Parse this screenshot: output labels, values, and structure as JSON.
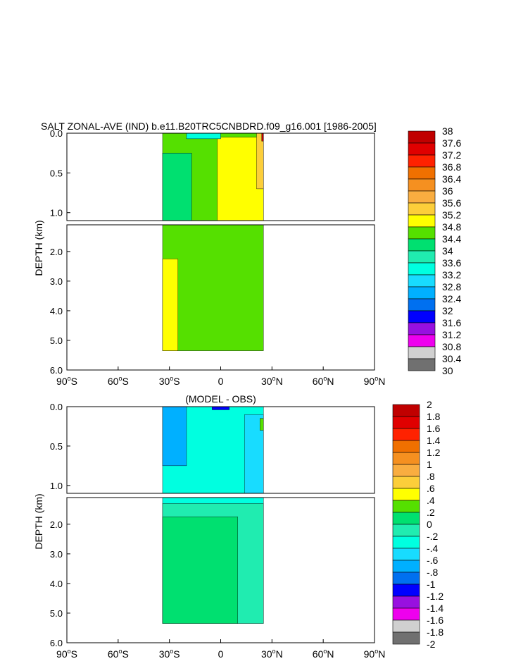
{
  "chart_data": [
    {
      "type": "heatmap",
      "title": "SALT ZONAL-AVE (IND) b.e11.B20TRC5CNBDRD.f09_g16.001 [1986-2005]",
      "ylabel": "DEPTH (km)",
      "xlabel": "",
      "xlim": [
        -90,
        90
      ],
      "x_tick_values": [
        -90,
        -60,
        -30,
        0,
        30,
        60,
        90
      ],
      "x_tick_labels": [
        {
          "num": "90",
          "hemi": "S"
        },
        {
          "num": "60",
          "hemi": "S"
        },
        {
          "num": "30",
          "hemi": "S"
        },
        {
          "num": "0",
          "hemi": ""
        },
        {
          "num": "30",
          "hemi": "N"
        },
        {
          "num": "60",
          "hemi": "N"
        },
        {
          "num": "90",
          "hemi": "N"
        }
      ],
      "upper_ylim": [
        0,
        1.1
      ],
      "upper_ticks": [
        {
          "v": 0.0,
          "label": "0.0"
        },
        {
          "v": 0.5,
          "label": "0.5"
        },
        {
          "v": 1.0,
          "label": "1.0"
        }
      ],
      "lower_ylim": [
        1.1,
        6.0
      ],
      "lower_ticks": [
        {
          "v": 2.0,
          "label": "2.0"
        },
        {
          "v": 3.0,
          "label": "3.0"
        },
        {
          "v": 4.0,
          "label": "4.0"
        },
        {
          "v": 5.0,
          "label": "5.0"
        },
        {
          "v": 6.0,
          "label": "6.0"
        }
      ],
      "colorbar": {
        "labels": [
          "38",
          "37.6",
          "37.2",
          "36.8",
          "36.4",
          "36",
          "35.6",
          "35.2",
          "34.8",
          "34.4",
          "34",
          "33.6",
          "33.2",
          "32.8",
          "32.4",
          "32",
          "31.6",
          "31.2",
          "30.8",
          "30.4",
          "30"
        ],
        "colors": [
          "#c00000",
          "#e00000",
          "#ff2200",
          "#f07000",
          "#f59020",
          "#f9ad40",
          "#fcce3a",
          "#ffff00",
          "#55e000",
          "#00e070",
          "#20ecb0",
          "#00ffe0",
          "#18dcff",
          "#00b0ff",
          "#0070f0",
          "#0000ff",
          "#9810e0",
          "#ee00ee",
          "#d0d0d0",
          "#707070"
        ]
      },
      "fields": [
        {
          "color": "#55e000",
          "lat_range": [
            -34,
            25
          ],
          "depth_range": [
            0,
            5.35
          ]
        },
        {
          "color": "#ffff00",
          "lat_range": [
            -2,
            25
          ],
          "depth_range": [
            0.05,
            1.1
          ],
          "value": 35.0
        },
        {
          "color": "#ffff00",
          "lat_range": [
            -34,
            -25
          ],
          "depth_range": [
            2.25,
            5.35
          ],
          "value": 35.0
        },
        {
          "color": "#00e070",
          "lat_range": [
            -34,
            -17
          ],
          "depth_range": [
            0.25,
            1.1
          ],
          "value": 34.2
        },
        {
          "color": "#00ffe0",
          "lat_range": [
            -20,
            0
          ],
          "depth_range": [
            0,
            0.07
          ],
          "value": 33.5
        },
        {
          "color": "#fcce3a",
          "lat_range": [
            21,
            25
          ],
          "depth_range": [
            0,
            0.7
          ],
          "value": 35.4
        },
        {
          "color": "#c00000",
          "lat_range": [
            24,
            25
          ],
          "depth_range": [
            0,
            0.1
          ],
          "value": 37.8
        }
      ]
    },
    {
      "type": "heatmap",
      "title": "(MODEL - OBS)",
      "ylabel": "DEPTH (km)",
      "xlabel": "",
      "xlim": [
        -90,
        90
      ],
      "x_tick_values": [
        -90,
        -60,
        -30,
        0,
        30,
        60,
        90
      ],
      "x_tick_labels": [
        {
          "num": "90",
          "hemi": "S"
        },
        {
          "num": "60",
          "hemi": "S"
        },
        {
          "num": "30",
          "hemi": "S"
        },
        {
          "num": "0",
          "hemi": ""
        },
        {
          "num": "30",
          "hemi": "N"
        },
        {
          "num": "60",
          "hemi": "N"
        },
        {
          "num": "90",
          "hemi": "N"
        }
      ],
      "upper_ylim": [
        0,
        1.1
      ],
      "upper_ticks": [
        {
          "v": 0.0,
          "label": "0.0"
        },
        {
          "v": 0.5,
          "label": "0.5"
        },
        {
          "v": 1.0,
          "label": "1.0"
        }
      ],
      "lower_ylim": [
        1.1,
        6.0
      ],
      "lower_ticks": [
        {
          "v": 2.0,
          "label": "2.0"
        },
        {
          "v": 3.0,
          "label": "3.0"
        },
        {
          "v": 4.0,
          "label": "4.0"
        },
        {
          "v": 5.0,
          "label": "5.0"
        },
        {
          "v": 6.0,
          "label": "6.0"
        }
      ],
      "colorbar": {
        "labels": [
          "2",
          "1.8",
          "1.6",
          "1.4",
          "1.2",
          "1",
          ".8",
          ".6",
          ".4",
          ".2",
          "0",
          "-.2",
          "-.4",
          "-.6",
          "-.8",
          "-1",
          "-1.2",
          "-1.4",
          "-1.6",
          "-1.8",
          "-2"
        ],
        "colors": [
          "#c00000",
          "#e00000",
          "#ff2200",
          "#f07000",
          "#f59020",
          "#f9ad40",
          "#fcce3a",
          "#ffff00",
          "#55e000",
          "#00e070",
          "#20ecb0",
          "#00ffe0",
          "#18dcff",
          "#00b0ff",
          "#0070f0",
          "#0000ff",
          "#9810e0",
          "#ee00ee",
          "#d0d0d0",
          "#707070"
        ]
      },
      "fields": [
        {
          "color": "#00ffe0",
          "lat_range": [
            -34,
            25
          ],
          "depth_range": [
            0,
            5.35
          ],
          "value": -0.3
        },
        {
          "color": "#20ecb0",
          "lat_range": [
            -34,
            25
          ],
          "depth_range": [
            1.3,
            5.35
          ],
          "value": -0.1
        },
        {
          "color": "#00e070",
          "lat_range": [
            -34,
            10
          ],
          "depth_range": [
            1.75,
            5.35
          ],
          "value": 0.1
        },
        {
          "color": "#00b0ff",
          "lat_range": [
            -34,
            -20
          ],
          "depth_range": [
            0,
            0.75
          ],
          "value": -0.7
        },
        {
          "color": "#18dcff",
          "lat_range": [
            14,
            25
          ],
          "depth_range": [
            0.1,
            1.1
          ],
          "value": -0.5
        },
        {
          "color": "#0000ff",
          "lat_range": [
            -5,
            5
          ],
          "depth_range": [
            0,
            0.04
          ],
          "value": -1.1
        },
        {
          "color": "#55e000",
          "lat_range": [
            23,
            25
          ],
          "depth_range": [
            0.15,
            0.3
          ],
          "value": 0.3
        }
      ]
    }
  ]
}
